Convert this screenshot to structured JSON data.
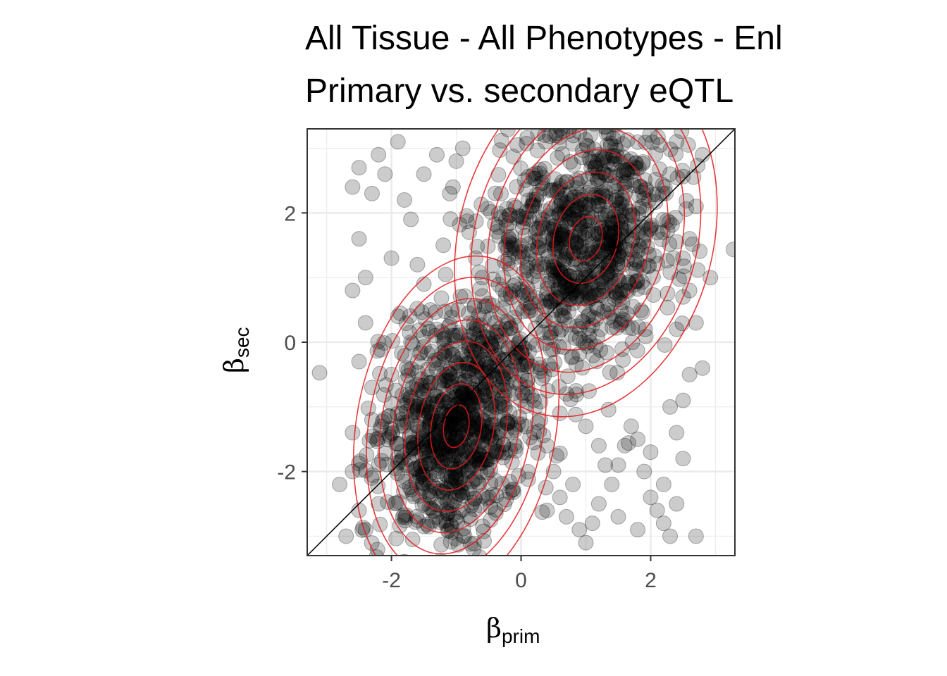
{
  "chart_data": {
    "type": "scatter",
    "title": "All Tissue - All Phenotypes - Enl",
    "subtitle": "Primary vs. secondary eQTL",
    "xlabel": {
      "symbol": "β",
      "subscript": "prim"
    },
    "ylabel": {
      "symbol": "β",
      "subscript": "sec"
    },
    "xlim": [
      -3.3,
      3.3
    ],
    "ylim": [
      -3.3,
      3.3
    ],
    "x_ticks": [
      -2,
      0,
      2
    ],
    "y_ticks": [
      -2,
      0,
      2
    ],
    "x_tick_labels": [
      "-2",
      "0",
      "2"
    ],
    "y_tick_labels": [
      "-2",
      "0",
      "2"
    ],
    "grid": true,
    "reference_line": {
      "type": "identity",
      "slope": 1,
      "intercept": 0,
      "color": "#000000"
    },
    "point_color": "#000000",
    "point_alpha": 0.2,
    "contour_color": "#e31a1c",
    "clusters": [
      {
        "name": "",
        "center": [
          -1.0,
          -1.3
        ],
        "spread": [
          0.55,
          0.95
        ],
        "rotation_deg": -10,
        "n": 900
      },
      {
        "name": "",
        "center": [
          1.0,
          1.6
        ],
        "spread": [
          0.7,
          1.0
        ],
        "rotation_deg": -15,
        "n": 900
      }
    ],
    "band_points": [
      [
        -2.8,
        -2.2
      ],
      [
        -2.6,
        0.8
      ],
      [
        -2.5,
        1.6
      ],
      [
        -2.3,
        2.3
      ],
      [
        -2.4,
        -2.9
      ],
      [
        -2.7,
        -3.0
      ],
      [
        -2.6,
        -1.4
      ],
      [
        -2.5,
        -0.3
      ],
      [
        -2.4,
        1.0
      ],
      [
        -2.2,
        2.9
      ],
      [
        -2.1,
        2.6
      ],
      [
        -1.9,
        3.1
      ],
      [
        -1.8,
        2.2
      ],
      [
        -1.7,
        1.9
      ],
      [
        -1.6,
        1.2
      ],
      [
        -1.5,
        0.9
      ],
      [
        -1.4,
        0.5
      ],
      [
        -1.3,
        0.2
      ],
      [
        -1.2,
        1.5
      ],
      [
        -1.1,
        2.3
      ],
      [
        -1.0,
        2.8
      ],
      [
        -0.9,
        3.0
      ],
      [
        -0.8,
        1.7
      ],
      [
        -0.7,
        1.3
      ],
      [
        -0.6,
        1.0
      ],
      [
        -0.5,
        0.6
      ],
      [
        -0.4,
        0.3
      ],
      [
        -0.3,
        0.1
      ],
      [
        -0.2,
        -0.1
      ],
      [
        -0.1,
        -0.3
      ],
      [
        0.1,
        -0.7
      ],
      [
        0.2,
        -0.9
      ],
      [
        0.3,
        -1.2
      ],
      [
        0.4,
        -1.6
      ],
      [
        0.5,
        -2.0
      ],
      [
        0.6,
        -2.4
      ],
      [
        0.7,
        -2.7
      ],
      [
        0.9,
        -2.9
      ],
      [
        1.0,
        -3.1
      ],
      [
        1.2,
        -2.5
      ],
      [
        1.4,
        -2.2
      ],
      [
        1.5,
        -1.9
      ],
      [
        1.6,
        -1.6
      ],
      [
        1.7,
        -1.3
      ],
      [
        1.8,
        -1.5
      ],
      [
        1.9,
        -2.0
      ],
      [
        2.0,
        -2.4
      ],
      [
        2.1,
        -2.6
      ],
      [
        2.2,
        -2.8
      ],
      [
        2.3,
        -3.0
      ],
      [
        2.5,
        -1.8
      ],
      [
        2.4,
        -1.4
      ],
      [
        2.3,
        -1.0
      ],
      [
        2.6,
        -0.5
      ],
      [
        2.8,
        -0.4
      ],
      [
        2.7,
        0.3
      ],
      [
        2.6,
        0.8
      ],
      [
        2.5,
        1.3
      ],
      [
        2.6,
        1.6
      ],
      [
        2.7,
        2.1
      ],
      [
        2.8,
        2.9
      ],
      [
        2.4,
        3.1
      ],
      [
        2.3,
        2.6
      ],
      [
        -0.2,
        0.3
      ],
      [
        0.3,
        -0.4
      ],
      [
        -2.5,
        2.7
      ],
      [
        -2.6,
        2.4
      ],
      [
        -2.3,
        -1.2
      ],
      [
        -2.2,
        -2.5
      ],
      [
        -2.0,
        1.3
      ],
      [
        -1.9,
        0.4
      ],
      [
        -1.7,
        0.0
      ],
      [
        -2.0,
        -0.5
      ],
      [
        -1.5,
        2.6
      ],
      [
        -1.3,
        2.9
      ],
      [
        0.0,
        -0.9
      ],
      [
        0.2,
        -1.4
      ],
      [
        0.4,
        -2.6
      ],
      [
        0.6,
        -1.1
      ],
      [
        0.8,
        -2.2
      ],
      [
        1.1,
        -2.8
      ],
      [
        1.3,
        -1.9
      ],
      [
        1.5,
        -2.7
      ],
      [
        1.8,
        -2.9
      ],
      [
        2.0,
        -1.7
      ],
      [
        2.2,
        -2.2
      ],
      [
        2.4,
        -2.5
      ],
      [
        2.5,
        -0.9
      ],
      [
        2.4,
        0.2
      ],
      [
        2.5,
        0.7
      ],
      [
        -2.4,
        0.3
      ],
      [
        -2.3,
        -0.7
      ],
      [
        -2.6,
        -2.0
      ],
      [
        -2.5,
        -2.6
      ],
      [
        -0.6,
        0.0
      ],
      [
        -0.4,
        -0.2
      ],
      [
        0.7,
        -0.8
      ],
      [
        1.0,
        -1.3
      ],
      [
        1.2,
        -1.6
      ],
      [
        2.7,
        -3.0
      ]
    ]
  }
}
